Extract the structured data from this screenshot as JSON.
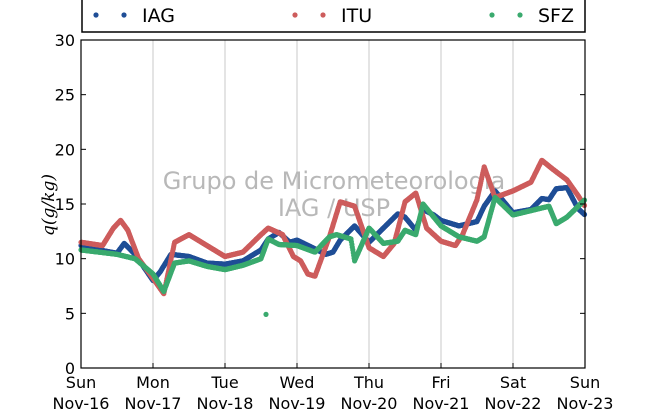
{
  "chart_data": {
    "type": "scatter",
    "ylabel": "q(g/kg)",
    "ylim": [
      0,
      30
    ],
    "yticks": [
      "0",
      "5",
      "10",
      "15",
      "20",
      "25",
      "30"
    ],
    "xlim_days": [
      0,
      7
    ],
    "xticks": [
      {
        "day": "Sun",
        "date": "Nov-16"
      },
      {
        "day": "Mon",
        "date": "Nov-17"
      },
      {
        "day": "Tue",
        "date": "Nov-18"
      },
      {
        "day": "Wed",
        "date": "Nov-19"
      },
      {
        "day": "Thu",
        "date": "Nov-20"
      },
      {
        "day": "Fri",
        "date": "Nov-21"
      },
      {
        "day": "Sat",
        "date": "Nov-22"
      },
      {
        "day": "Sun",
        "date": "Nov-23"
      }
    ],
    "grid": "vertical",
    "legend_position": "top",
    "watermark": [
      "Grupo de Micrometeorologia",
      "IAG / USP"
    ],
    "series": [
      {
        "name": "IAG",
        "color": "#1f4e96",
        "x": [
          0,
          0.25,
          0.5,
          0.6,
          0.75,
          1.0,
          1.1,
          1.25,
          1.5,
          1.75,
          2.0,
          2.25,
          2.5,
          2.6,
          2.75,
          2.9,
          3.0,
          3.25,
          3.4,
          3.5,
          3.6,
          3.8,
          4.0,
          4.2,
          4.4,
          4.5,
          4.65,
          4.75,
          4.9,
          5.0,
          5.25,
          5.5,
          5.6,
          5.75,
          6.0,
          6.25,
          6.4,
          6.5,
          6.6,
          6.75,
          6.9,
          7.0
        ],
        "y": [
          11.2,
          10.8,
          10.5,
          11.4,
          10.4,
          8.0,
          8.8,
          10.4,
          10.2,
          9.6,
          9.5,
          9.8,
          10.8,
          11.8,
          12.4,
          11.5,
          11.7,
          10.9,
          10.4,
          10.6,
          11.7,
          13.0,
          11.5,
          12.8,
          14.1,
          13.8,
          12.6,
          14.5,
          14.0,
          13.5,
          13.0,
          13.4,
          14.8,
          16.2,
          14.2,
          14.5,
          15.5,
          15.4,
          16.4,
          16.5,
          14.6,
          14.0
        ]
      },
      {
        "name": "ITU",
        "color": "#cd5c5c",
        "x": [
          0,
          0.3,
          0.45,
          0.55,
          0.65,
          0.8,
          1.0,
          1.15,
          1.3,
          1.5,
          1.75,
          2.0,
          2.25,
          2.5,
          2.6,
          2.8,
          2.95,
          3.05,
          3.15,
          3.25,
          3.45,
          3.6,
          3.8,
          4.0,
          4.2,
          4.35,
          4.5,
          4.65,
          4.8,
          5.0,
          5.2,
          5.3,
          5.5,
          5.6,
          5.75,
          6.0,
          6.25,
          6.4,
          6.55,
          6.75,
          6.9,
          7.0
        ],
        "y": [
          11.5,
          11.2,
          12.8,
          13.5,
          12.6,
          10.0,
          8.2,
          6.8,
          11.5,
          12.2,
          11.2,
          10.2,
          10.6,
          12.2,
          12.8,
          12.2,
          10.2,
          9.8,
          8.6,
          8.4,
          12.0,
          15.2,
          14.8,
          11.0,
          10.2,
          11.4,
          15.2,
          16.0,
          12.8,
          11.6,
          11.2,
          12.2,
          15.4,
          18.4,
          15.6,
          16.2,
          17.0,
          19.0,
          18.2,
          17.2,
          15.8,
          14.8
        ]
      },
      {
        "name": "SFZ",
        "color": "#3aaa6e",
        "x": [
          0,
          0.25,
          0.5,
          0.75,
          1.0,
          1.15,
          1.3,
          1.5,
          1.75,
          2.0,
          2.25,
          2.5,
          2.6,
          2.75,
          3.0,
          3.25,
          3.45,
          3.55,
          3.75,
          3.8,
          4.0,
          4.2,
          4.4,
          4.5,
          4.65,
          4.75,
          5.0,
          5.25,
          5.5,
          5.6,
          5.75,
          6.0,
          6.25,
          6.5,
          6.6,
          6.75,
          7.0,
          2.57
        ],
        "y": [
          10.8,
          10.6,
          10.4,
          10.0,
          8.6,
          7.0,
          9.6,
          9.8,
          9.3,
          9.0,
          9.4,
          10.0,
          11.8,
          11.3,
          11.2,
          10.6,
          12.0,
          12.2,
          11.8,
          9.8,
          12.8,
          11.4,
          11.6,
          12.6,
          12.2,
          15.0,
          13.0,
          12.0,
          11.6,
          12.0,
          15.6,
          14.0,
          14.4,
          14.8,
          13.2,
          13.8,
          15.4,
          4.9
        ]
      }
    ]
  }
}
